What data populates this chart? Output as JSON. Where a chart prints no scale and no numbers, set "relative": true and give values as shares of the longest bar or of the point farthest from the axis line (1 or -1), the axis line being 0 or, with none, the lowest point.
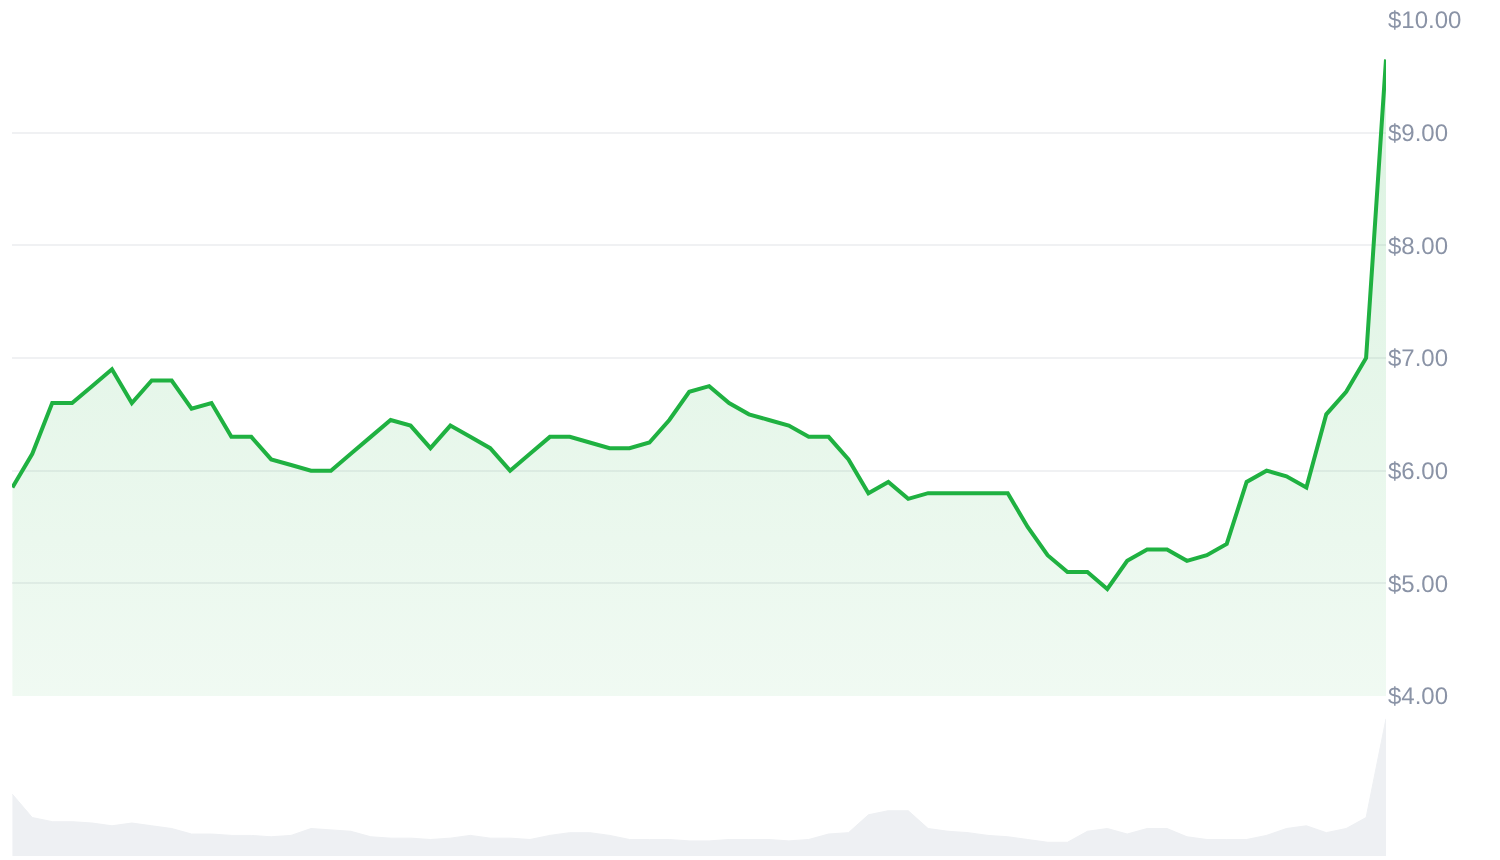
{
  "chart_data": [
    {
      "type": "area",
      "categories": [
        null,
        null,
        null,
        null,
        null,
        null,
        null,
        null,
        null,
        null,
        null,
        null,
        null,
        null,
        null,
        null,
        null,
        null,
        null,
        null,
        null,
        null,
        null,
        null,
        null,
        null,
        null,
        null,
        null,
        null,
        null,
        null,
        null,
        null,
        null,
        null,
        null,
        null,
        null,
        null,
        null,
        null,
        null,
        null,
        null,
        null,
        null,
        null,
        null,
        null,
        null,
        null,
        null,
        null,
        null,
        null,
        null,
        null,
        null,
        null,
        null,
        null,
        null,
        null,
        null,
        null,
        null,
        null,
        null,
        null
      ],
      "series": [
        {
          "color": "#1fb141",
          "values": [
            5.85,
            6.15,
            6.6,
            6.6,
            6.75,
            6.9,
            6.6,
            6.8,
            6.8,
            6.55,
            6.6,
            6.3,
            6.3,
            6.1,
            6.05,
            6.0,
            6.0,
            6.15,
            6.3,
            6.45,
            6.4,
            6.2,
            6.4,
            6.3,
            6.2,
            6.0,
            6.15,
            6.3,
            6.3,
            6.25,
            6.2,
            6.2,
            6.25,
            6.45,
            6.7,
            6.75,
            6.6,
            6.5,
            6.45,
            6.4,
            6.3,
            6.3,
            6.1,
            5.8,
            5.9,
            5.75,
            5.8,
            5.8,
            5.8,
            5.8,
            5.8,
            5.5,
            5.25,
            5.1,
            5.1,
            4.95,
            5.2,
            5.3,
            5.3,
            5.2,
            5.25,
            5.35,
            5.9,
            6.0,
            5.95,
            5.85,
            6.5,
            6.7,
            7.0,
            9.65
          ]
        }
      ],
      "ylim": [
        4,
        10
      ],
      "yticks": [
        {
          "value": 4,
          "label": "$4.00"
        },
        {
          "value": 5,
          "label": "$5.00"
        },
        {
          "value": 6,
          "label": "$6.00"
        },
        {
          "value": 7,
          "label": "$7.00"
        },
        {
          "value": 8,
          "label": "$8.00"
        },
        {
          "value": 9,
          "label": "$9.00"
        },
        {
          "value": 10,
          "label": "$10.00"
        }
      ],
      "grid": "y",
      "tick_labels": "y"
    },
    {
      "type": "area",
      "categories": [
        null,
        null,
        null,
        null,
        null,
        null,
        null,
        null,
        null,
        null,
        null,
        null,
        null,
        null,
        null,
        null,
        null,
        null,
        null,
        null,
        null,
        null,
        null,
        null,
        null,
        null,
        null,
        null,
        null,
        null,
        null,
        null,
        null,
        null,
        null,
        null,
        null,
        null,
        null,
        null,
        null,
        null,
        null,
        null,
        null,
        null,
        null,
        null,
        null,
        null,
        null,
        null,
        null,
        null,
        null,
        null,
        null,
        null,
        null,
        null,
        null,
        null,
        null,
        null,
        null,
        null,
        null,
        null,
        null,
        null
      ],
      "series": [
        {
          "color": "#eef0f3",
          "values": [
            0.45,
            0.28,
            0.25,
            0.25,
            0.24,
            0.22,
            0.24,
            0.22,
            0.2,
            0.16,
            0.16,
            0.15,
            0.15,
            0.14,
            0.15,
            0.2,
            0.19,
            0.18,
            0.14,
            0.13,
            0.13,
            0.12,
            0.13,
            0.15,
            0.13,
            0.13,
            0.12,
            0.15,
            0.17,
            0.17,
            0.15,
            0.12,
            0.12,
            0.12,
            0.11,
            0.11,
            0.12,
            0.12,
            0.12,
            0.11,
            0.12,
            0.16,
            0.17,
            0.3,
            0.33,
            0.33,
            0.2,
            0.18,
            0.17,
            0.15,
            0.14,
            0.12,
            0.1,
            0.1,
            0.18,
            0.2,
            0.16,
            0.2,
            0.2,
            0.14,
            0.12,
            0.12,
            0.12,
            0.15,
            0.2,
            0.22,
            0.17,
            0.2,
            0.28,
            1.0
          ]
        }
      ],
      "relative": true,
      "tick_labels": false
    }
  ]
}
